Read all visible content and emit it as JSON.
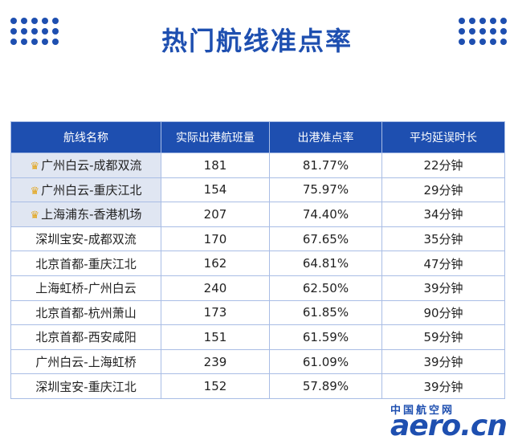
{
  "title": "热门航线准点率",
  "table": {
    "headers": [
      "航线名称",
      "实际出港航班量",
      "出港准点率",
      "平均延误时长"
    ],
    "rows": [
      {
        "route": "广州白云-成都双流",
        "flights": "181",
        "rate": "81.77%",
        "delay": "22分钟",
        "crown": true
      },
      {
        "route": "广州白云-重庆江北",
        "flights": "154",
        "rate": "75.97%",
        "delay": "29分钟",
        "crown": true
      },
      {
        "route": "上海浦东-香港机场",
        "flights": "207",
        "rate": "74.40%",
        "delay": "34分钟",
        "crown": true
      },
      {
        "route": "深圳宝安-成都双流",
        "flights": "170",
        "rate": "67.65%",
        "delay": "35分钟",
        "crown": false
      },
      {
        "route": "北京首都-重庆江北",
        "flights": "162",
        "rate": "64.81%",
        "delay": "47分钟",
        "crown": false
      },
      {
        "route": "上海虹桥-广州白云",
        "flights": "240",
        "rate": "62.50%",
        "delay": "39分钟",
        "crown": false
      },
      {
        "route": "北京首都-杭州萧山",
        "flights": "173",
        "rate": "61.85%",
        "delay": "90分钟",
        "crown": false
      },
      {
        "route": "北京首都-西安咸阳",
        "flights": "151",
        "rate": "61.59%",
        "delay": "59分钟",
        "crown": false
      },
      {
        "route": "广州白云-上海虹桥",
        "flights": "239",
        "rate": "61.09%",
        "delay": "39分钟",
        "crown": false
      },
      {
        "route": "深圳宝安-重庆江北",
        "flights": "152",
        "rate": "57.89%",
        "delay": "39分钟",
        "crown": false
      }
    ]
  },
  "watermark": {
    "cn": "中国航空网",
    "en": "aero.cn"
  },
  "colors": {
    "brand": "#1e4fb0",
    "highlight": "#e0e6f2",
    "crown": "#e3a51c"
  }
}
